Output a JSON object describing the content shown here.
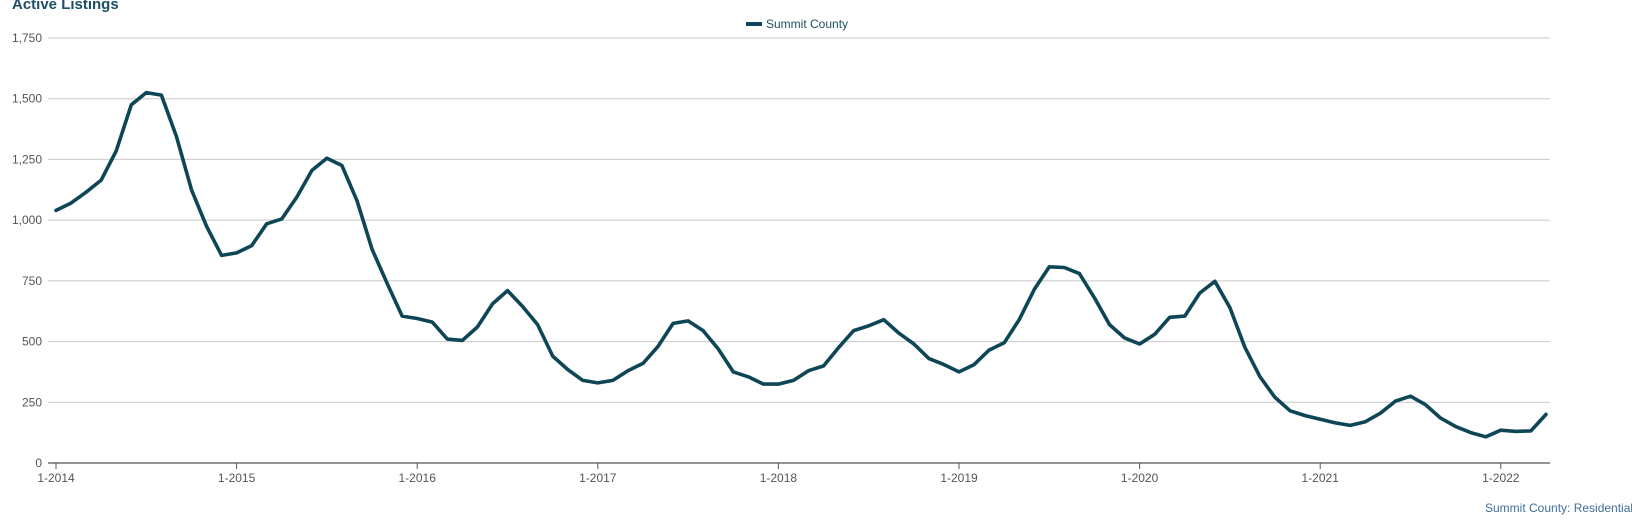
{
  "title": "Active Listings",
  "footer": "Summit County: Residential",
  "colors": {
    "series": "#0e4657",
    "grid": "#c8c8c8",
    "axis": "#555555",
    "title": "#1d4f66",
    "footer": "#3f6f9e"
  },
  "chart_data": {
    "type": "line",
    "title": "Active Listings",
    "xlabel": "",
    "ylabel": "",
    "ylim": [
      0,
      1750
    ],
    "y_ticks": [
      0,
      250,
      500,
      750,
      1000,
      1250,
      1500,
      1750
    ],
    "y_tick_labels": [
      "0",
      "250",
      "500",
      "750",
      "1,000",
      "1,250",
      "1,500",
      "1,750"
    ],
    "x_ticks": [
      "1-2014",
      "1-2015",
      "1-2016",
      "1-2017",
      "1-2018",
      "1-2019",
      "1-2020",
      "1-2021",
      "1-2022"
    ],
    "grid": true,
    "legend": "top-center",
    "series": [
      {
        "name": "Summit County",
        "x": [
          "1-2014",
          "2-2014",
          "3-2014",
          "4-2014",
          "5-2014",
          "6-2014",
          "7-2014",
          "8-2014",
          "9-2014",
          "10-2014",
          "11-2014",
          "12-2014",
          "1-2015",
          "2-2015",
          "3-2015",
          "4-2015",
          "5-2015",
          "6-2015",
          "7-2015",
          "8-2015",
          "9-2015",
          "10-2015",
          "11-2015",
          "12-2015",
          "1-2016",
          "2-2016",
          "3-2016",
          "4-2016",
          "5-2016",
          "6-2016",
          "7-2016",
          "8-2016",
          "9-2016",
          "10-2016",
          "11-2016",
          "12-2016",
          "1-2017",
          "2-2017",
          "3-2017",
          "4-2017",
          "5-2017",
          "6-2017",
          "7-2017",
          "8-2017",
          "9-2017",
          "10-2017",
          "11-2017",
          "12-2017",
          "1-2018",
          "2-2018",
          "3-2018",
          "4-2018",
          "5-2018",
          "6-2018",
          "7-2018",
          "8-2018",
          "9-2018",
          "10-2018",
          "11-2018",
          "12-2018",
          "1-2019",
          "2-2019",
          "3-2019",
          "4-2019",
          "5-2019",
          "6-2019",
          "7-2019",
          "8-2019",
          "9-2019",
          "10-2019",
          "11-2019",
          "12-2019",
          "1-2020",
          "2-2020",
          "3-2020",
          "4-2020",
          "5-2020",
          "6-2020",
          "7-2020",
          "8-2020",
          "9-2020",
          "10-2020",
          "11-2020",
          "12-2020",
          "1-2021",
          "2-2021",
          "3-2021",
          "4-2021",
          "5-2021",
          "6-2021",
          "7-2021",
          "8-2021",
          "9-2021",
          "10-2021",
          "11-2021",
          "12-2021",
          "1-2022",
          "2-2022",
          "3-2022",
          "4-2022"
        ],
        "values": [
          1040,
          1070,
          1115,
          1165,
          1285,
          1475,
          1525,
          1515,
          1345,
          1125,
          975,
          855,
          865,
          895,
          985,
          1005,
          1095,
          1205,
          1255,
          1225,
          1080,
          880,
          740,
          605,
          595,
          580,
          510,
          505,
          560,
          655,
          710,
          645,
          570,
          440,
          385,
          340,
          330,
          340,
          380,
          410,
          480,
          575,
          585,
          545,
          470,
          375,
          355,
          325,
          325,
          340,
          380,
          400,
          475,
          545,
          565,
          590,
          535,
          490,
          430,
          405,
          375,
          405,
          465,
          495,
          590,
          715,
          808,
          805,
          780,
          680,
          570,
          515,
          490,
          530,
          600,
          605,
          700,
          748,
          640,
          475,
          355,
          270,
          215,
          195,
          180,
          165,
          155,
          170,
          205,
          255,
          275,
          240,
          185,
          150,
          125,
          108,
          135,
          130,
          132,
          200
        ]
      }
    ]
  }
}
